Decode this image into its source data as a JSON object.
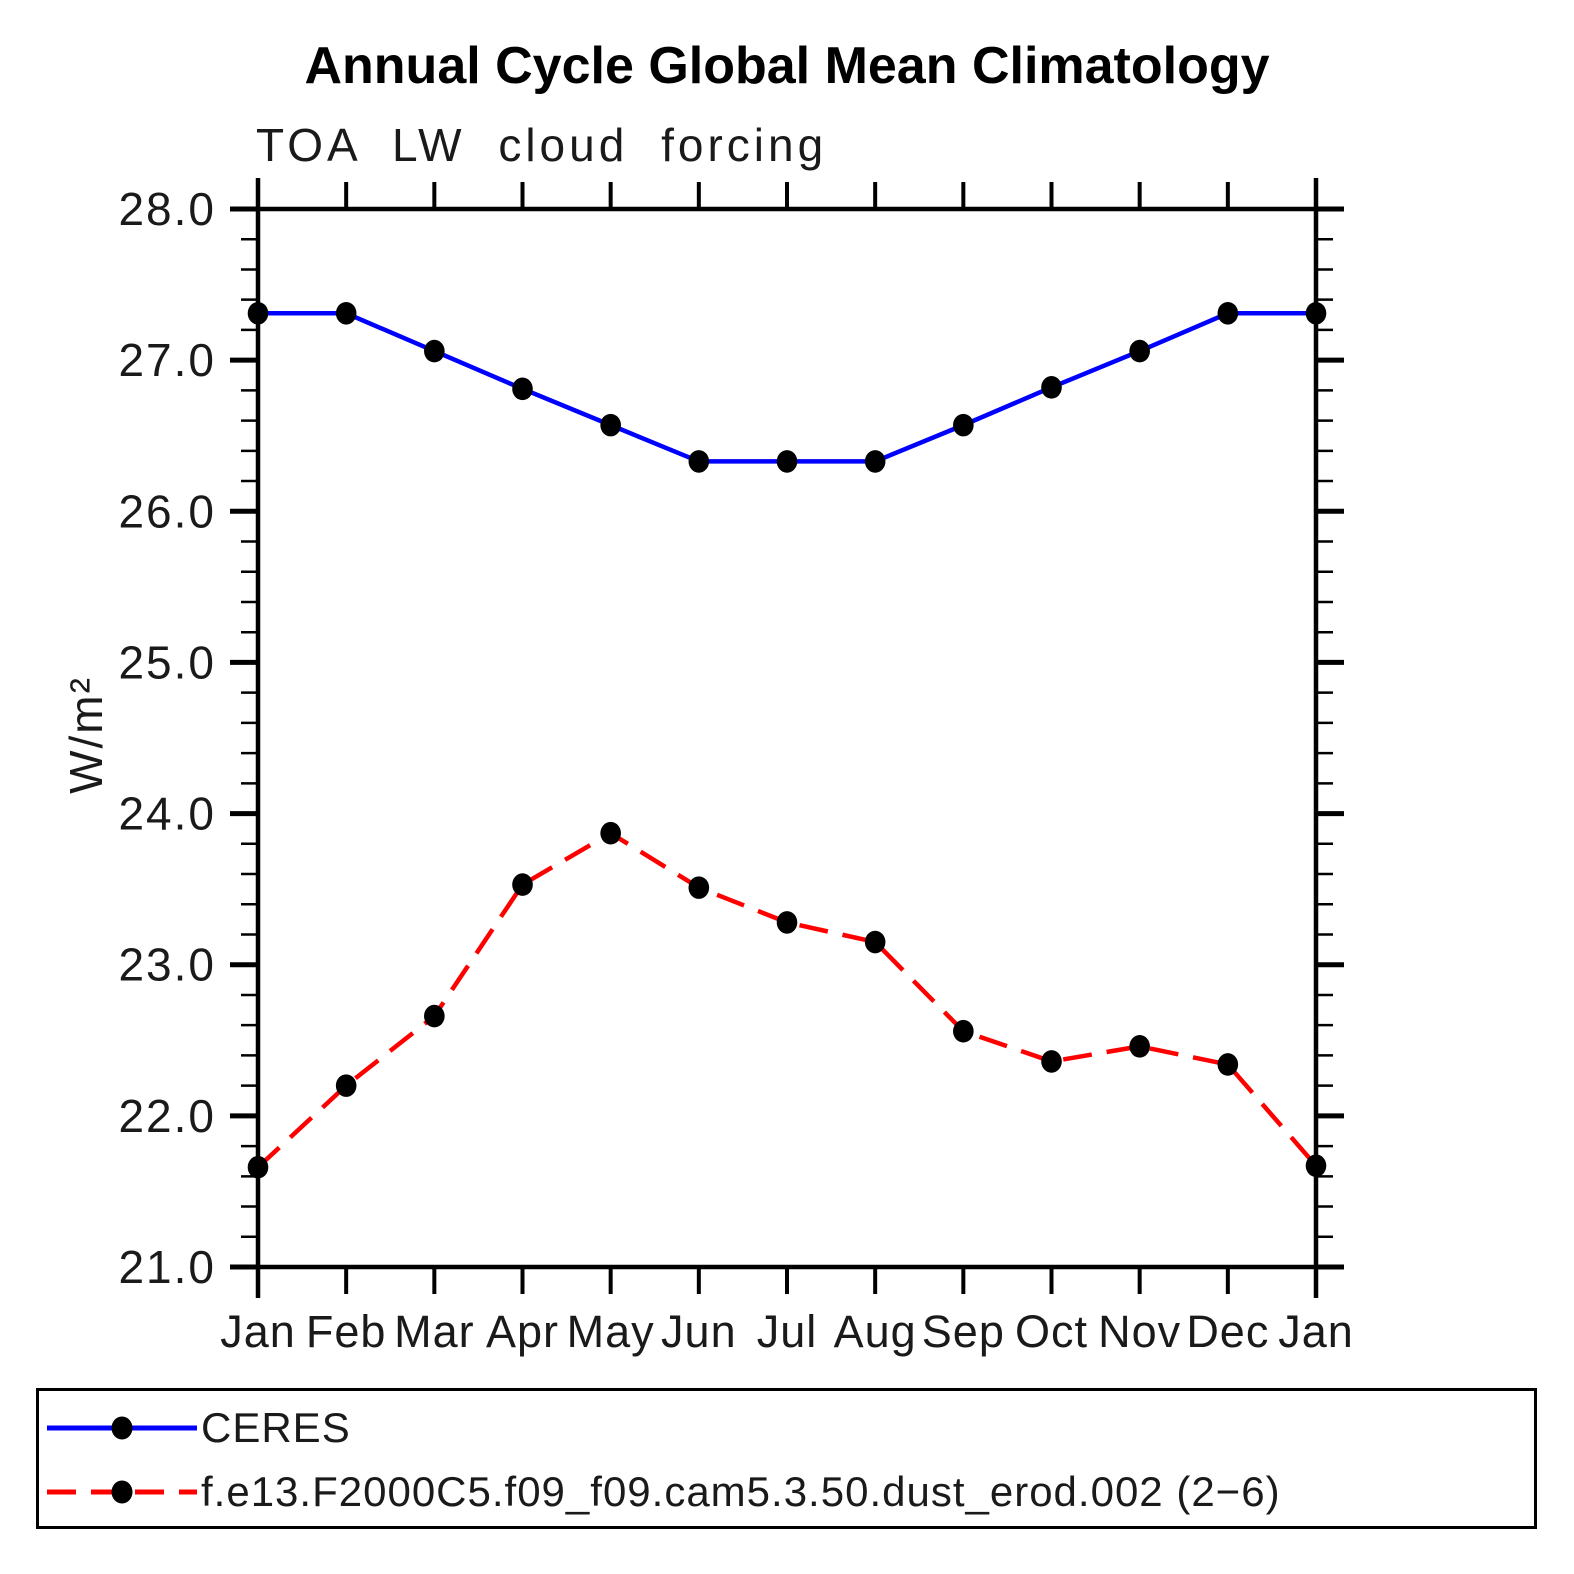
{
  "title": "Annual Cycle Global Mean Climatology",
  "subtitle": "TOA LW cloud forcing",
  "y_axis_label": "W/m²",
  "chart_data": {
    "type": "line",
    "x_categories": [
      "Jan",
      "Feb",
      "Mar",
      "Apr",
      "May",
      "Jun",
      "Jul",
      "Aug",
      "Sep",
      "Oct",
      "Nov",
      "Dec",
      "Jan"
    ],
    "xlabel": "",
    "ylabel": "W/m²",
    "ylim": [
      21.0,
      28.0
    ],
    "y_major_ticks": [
      21,
      22,
      23,
      24,
      25,
      26,
      27,
      28
    ],
    "y_tick_labels": [
      "21.0",
      "22.0",
      "23.0",
      "24.0",
      "25.0",
      "26.0",
      "27.0",
      "28.0"
    ],
    "y_minor_step": 0.2,
    "grid": false,
    "legend_position": "bottom-box",
    "marker_color": "#000000",
    "series": [
      {
        "name": "CERES",
        "color": "#0000ff",
        "line_style": "solid",
        "marker": "black-dot",
        "values": [
          27.31,
          27.31,
          27.06,
          26.81,
          26.57,
          26.33,
          26.33,
          26.33,
          26.57,
          26.82,
          27.06,
          27.31,
          27.31
        ]
      },
      {
        "name": "f.e13.F2000C5.f09_f09.cam5.3.50.dust_erod.002 (2−6)",
        "color": "#ff0000",
        "line_style": "dashed",
        "marker": "black-dot",
        "values": [
          21.66,
          22.2,
          22.66,
          23.53,
          23.87,
          23.51,
          23.28,
          23.15,
          22.56,
          22.36,
          22.46,
          22.34,
          21.67
        ]
      }
    ]
  }
}
